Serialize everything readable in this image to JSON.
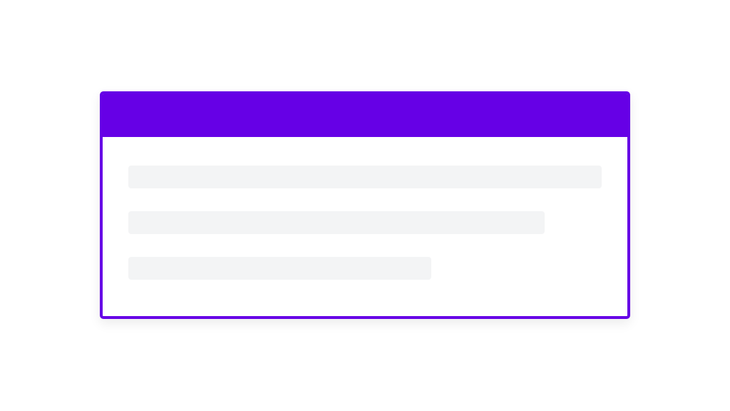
{
  "colors": {
    "accent": "#6600E6",
    "skeleton": "#F3F4F5",
    "background": "#FFFFFF"
  },
  "skeleton_lines": [
    {
      "width_percent": 100
    },
    {
      "width_percent": 88
    },
    {
      "width_percent": 64
    }
  ]
}
